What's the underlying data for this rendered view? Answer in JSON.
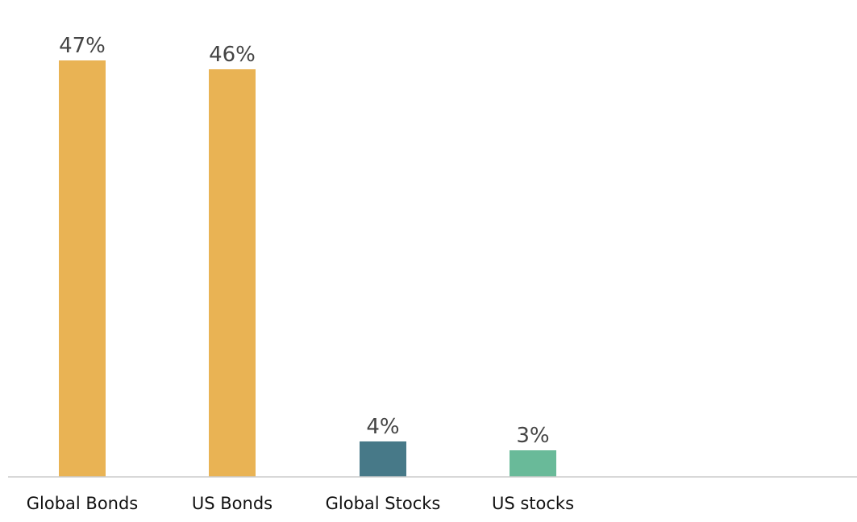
{
  "chart_data": {
    "type": "bar",
    "categories": [
      "Global Bonds",
      "US Bonds",
      "Global Stocks",
      "US stocks"
    ],
    "values": [
      47,
      46,
      4,
      3
    ],
    "value_labels": [
      "47%",
      "46%",
      "4%",
      "3%"
    ],
    "colors": [
      "#E9B354",
      "#E9B354",
      "#477988",
      "#69BA99"
    ],
    "axis_color": "#CCCCCC",
    "title": "",
    "xlabel": "",
    "ylabel": "",
    "ylim": [
      0,
      47
    ],
    "grid": false,
    "legend": "none"
  }
}
